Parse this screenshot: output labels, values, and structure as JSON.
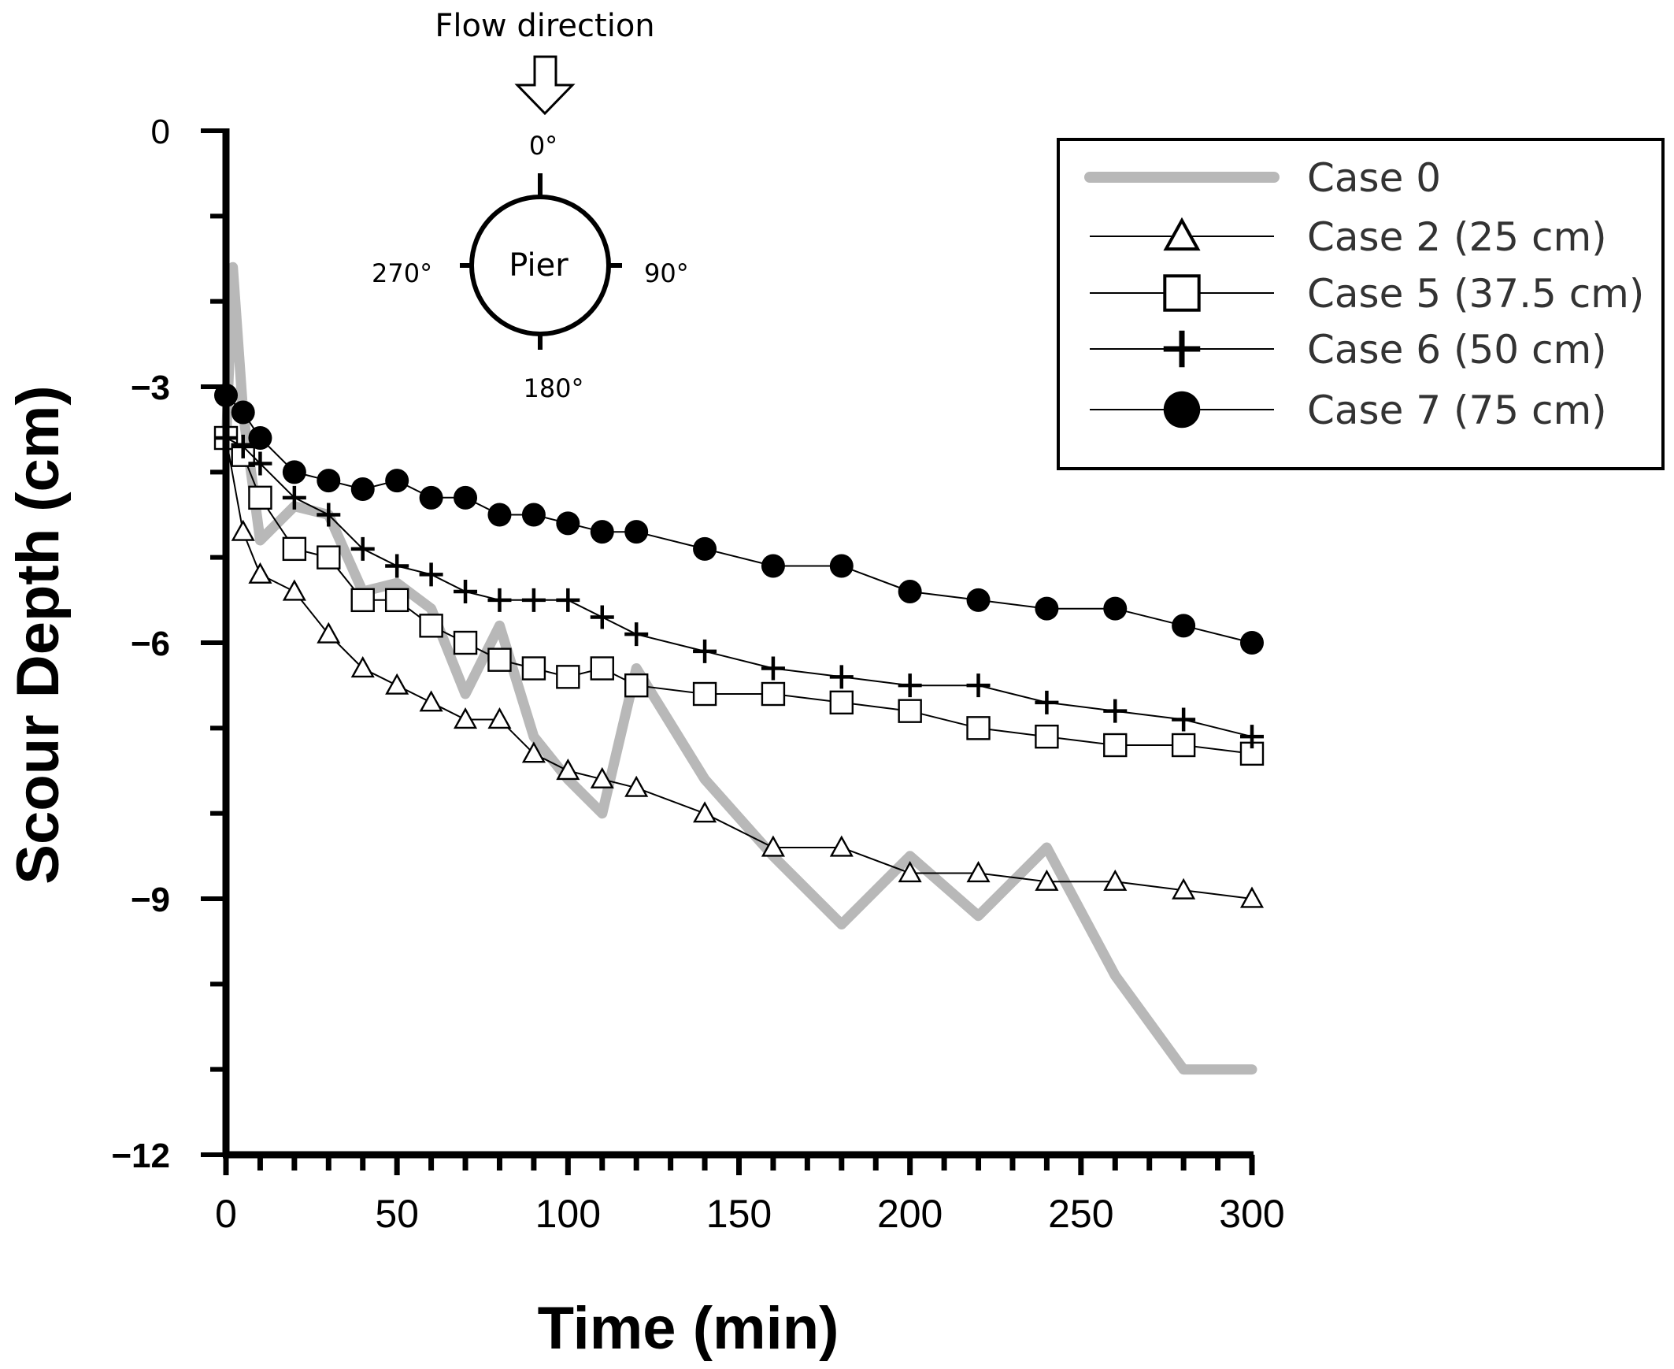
{
  "chart_data": {
    "type": "line",
    "title": "",
    "xlabel": "Time (min)",
    "ylabel": "Scour Depth (cm)",
    "xlim": [
      0,
      300
    ],
    "ylim": [
      -12,
      0
    ],
    "x_ticks": [
      0,
      50,
      100,
      150,
      200,
      250,
      300
    ],
    "x_tick_labels": [
      "0",
      "50",
      "100",
      "150",
      "200",
      "250",
      "300"
    ],
    "y_ticks": [
      0,
      -3,
      -6,
      -9,
      -12
    ],
    "y_tick_labels": [
      "0",
      "−3",
      "−6",
      "−9",
      "−12"
    ],
    "grid": false,
    "legend_position": "top-right",
    "series": [
      {
        "name": "Case 0",
        "marker": "none",
        "color": "#b8b8b8",
        "x": [
          0,
          2,
          5,
          10,
          20,
          30,
          40,
          50,
          60,
          70,
          80,
          90,
          100,
          110,
          120,
          140,
          160,
          180,
          200,
          220,
          240,
          260,
          280,
          300
        ],
        "y": [
          -3.7,
          -1.6,
          -3.3,
          -4.8,
          -4.4,
          -4.5,
          -5.4,
          -5.3,
          -5.6,
          -6.6,
          -5.8,
          -7.1,
          -7.6,
          -8.0,
          -6.3,
          -7.6,
          -8.5,
          -9.3,
          -8.5,
          -9.2,
          -8.4,
          -9.9,
          -11.0,
          -11.0
        ]
      },
      {
        "name": "Case 2 (25 cm)",
        "marker": "triangle",
        "color": "#000000",
        "x": [
          0,
          5,
          10,
          20,
          30,
          40,
          50,
          60,
          70,
          80,
          90,
          100,
          110,
          120,
          140,
          160,
          180,
          200,
          220,
          240,
          260,
          280,
          300
        ],
        "y": [
          -3.6,
          -4.7,
          -5.2,
          -5.4,
          -5.9,
          -6.3,
          -6.5,
          -6.7,
          -6.9,
          -6.9,
          -7.3,
          -7.5,
          -7.6,
          -7.7,
          -8.0,
          -8.4,
          -8.4,
          -8.7,
          -8.7,
          -8.8,
          -8.8,
          -8.9,
          -9.0
        ]
      },
      {
        "name": "Case 5 (37.5 cm)",
        "marker": "square",
        "color": "#000000",
        "x": [
          0,
          5,
          10,
          20,
          30,
          40,
          50,
          60,
          70,
          80,
          90,
          100,
          110,
          120,
          140,
          160,
          180,
          200,
          220,
          240,
          260,
          280,
          300
        ],
        "y": [
          -3.6,
          -3.8,
          -4.3,
          -4.9,
          -5.0,
          -5.5,
          -5.5,
          -5.8,
          -6.0,
          -6.2,
          -6.3,
          -6.4,
          -6.3,
          -6.5,
          -6.6,
          -6.6,
          -6.7,
          -6.8,
          -7.0,
          -7.1,
          -7.2,
          -7.2,
          -7.3
        ]
      },
      {
        "name": "Case 6 (50 cm)",
        "marker": "plus",
        "color": "#000000",
        "x": [
          0,
          5,
          10,
          20,
          30,
          40,
          50,
          60,
          70,
          80,
          90,
          100,
          110,
          120,
          140,
          160,
          180,
          200,
          220,
          240,
          260,
          280,
          300
        ],
        "y": [
          -3.6,
          -3.7,
          -3.9,
          -4.3,
          -4.5,
          -4.9,
          -5.1,
          -5.2,
          -5.4,
          -5.5,
          -5.5,
          -5.5,
          -5.7,
          -5.9,
          -6.1,
          -6.3,
          -6.4,
          -6.5,
          -6.5,
          -6.7,
          -6.8,
          -6.9,
          -7.1
        ]
      },
      {
        "name": "Case 7 (75 cm)",
        "marker": "circle",
        "color": "#000000",
        "x": [
          0,
          5,
          10,
          20,
          30,
          40,
          50,
          60,
          70,
          80,
          90,
          100,
          110,
          120,
          140,
          160,
          180,
          200,
          220,
          240,
          260,
          280,
          300
        ],
        "y": [
          -3.1,
          -3.3,
          -3.6,
          -4.0,
          -4.1,
          -4.2,
          -4.1,
          -4.3,
          -4.3,
          -4.5,
          -4.5,
          -4.6,
          -4.7,
          -4.7,
          -4.9,
          -5.1,
          -5.1,
          -5.4,
          -5.5,
          -5.6,
          -5.6,
          -5.8,
          -6.0
        ]
      }
    ]
  },
  "inset": {
    "flow_label": "Flow direction",
    "pier_label": "Pier",
    "angle_top": "0°",
    "angle_right": "90°",
    "angle_bottom": "180°",
    "angle_left": "270°"
  }
}
